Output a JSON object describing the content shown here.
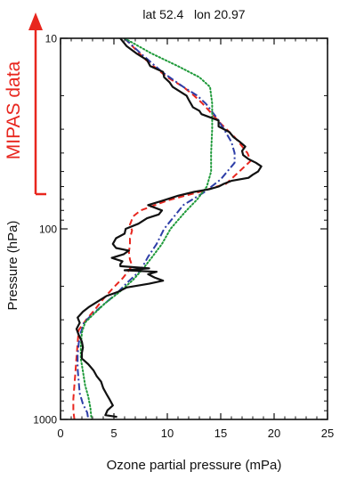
{
  "chart_data": {
    "type": "line",
    "title": "lat 52.4   lon 20.97",
    "xlabel": "Ozone partial pressure (mPa)",
    "ylabel": "Pressure (hPa)",
    "xlim": [
      0,
      25
    ],
    "ylim": [
      10,
      1000
    ],
    "y_scale": "log",
    "y_reversed": true,
    "x_ticks": [
      "0",
      "5",
      "10",
      "15",
      "20",
      "25"
    ],
    "y_tick_labels": [
      "10",
      "100",
      "1000"
    ],
    "annotation": {
      "text": "MIPAS data",
      "range_hpa": [
        10,
        60
      ],
      "color": "#e8261e"
    },
    "series": [
      {
        "color": "#111111",
        "dash": "solid",
        "points": [
          [
            5.6,
            10
          ],
          [
            6.2,
            11
          ],
          [
            7.1,
            12
          ],
          [
            8.1,
            13
          ],
          [
            8.4,
            14
          ],
          [
            9.6,
            15
          ],
          [
            9.7,
            16
          ],
          [
            10.2,
            17
          ],
          [
            10.5,
            18
          ],
          [
            11.8,
            20
          ],
          [
            12.0,
            21
          ],
          [
            12.4,
            23
          ],
          [
            13.0,
            24
          ],
          [
            13.2,
            25
          ],
          [
            14.8,
            27
          ],
          [
            14.8,
            29
          ],
          [
            15.8,
            31
          ],
          [
            16.2,
            33
          ],
          [
            16.8,
            35
          ],
          [
            17.3,
            37
          ],
          [
            17.0,
            39
          ],
          [
            17.1,
            41
          ],
          [
            17.6,
            43
          ],
          [
            18.3,
            45
          ],
          [
            18.8,
            47
          ],
          [
            18.5,
            50
          ],
          [
            18.0,
            52
          ],
          [
            17.6,
            54
          ],
          [
            16.0,
            56
          ],
          [
            15.3,
            58
          ],
          [
            14.8,
            60
          ],
          [
            13.9,
            62
          ],
          [
            12.5,
            64
          ],
          [
            11.0,
            67
          ],
          [
            9.6,
            71
          ],
          [
            8.2,
            75
          ],
          [
            9.5,
            80
          ],
          [
            9.2,
            84
          ],
          [
            8.1,
            88
          ],
          [
            7.3,
            94
          ],
          [
            6.1,
            100
          ],
          [
            6.0,
            106
          ],
          [
            5.2,
            112
          ],
          [
            4.9,
            120
          ],
          [
            5.2,
            126
          ],
          [
            6.4,
            130
          ],
          [
            5.9,
            136
          ],
          [
            4.8,
            142
          ],
          [
            5.8,
            148
          ],
          [
            5.6,
            153
          ],
          [
            5.6,
            157
          ],
          [
            8.3,
            161
          ],
          [
            6.0,
            165
          ],
          [
            9.0,
            168
          ],
          [
            8.2,
            173
          ],
          [
            8.8,
            180
          ],
          [
            9.6,
            187
          ],
          [
            8.3,
            194
          ],
          [
            6.2,
            203
          ],
          [
            5.4,
            214
          ],
          [
            4.3,
            225
          ],
          [
            3.5,
            240
          ],
          [
            2.7,
            256
          ],
          [
            2.1,
            272
          ],
          [
            1.6,
            292
          ],
          [
            1.8,
            311
          ],
          [
            1.5,
            335
          ],
          [
            1.7,
            360
          ],
          [
            2.0,
            391
          ],
          [
            2.1,
            419
          ],
          [
            2.0,
            447
          ],
          [
            2.0,
            479
          ],
          [
            2.6,
            513
          ],
          [
            3.1,
            554
          ],
          [
            3.4,
            594
          ],
          [
            3.8,
            634
          ],
          [
            4.0,
            685
          ],
          [
            4.3,
            735
          ],
          [
            4.6,
            786
          ],
          [
            4.9,
            845
          ],
          [
            4.4,
            895
          ],
          [
            4.2,
            950
          ],
          [
            5.3,
            970
          ]
        ]
      },
      {
        "color": "#e8261e",
        "dash": "dashed",
        "points": [
          [
            6.0,
            10
          ],
          [
            8.0,
            13
          ],
          [
            10.0,
            16
          ],
          [
            11.5,
            18
          ],
          [
            12.5,
            20
          ],
          [
            13.3,
            22
          ],
          [
            15.0,
            28
          ],
          [
            16.3,
            33
          ],
          [
            17.5,
            40
          ],
          [
            17.8,
            44
          ],
          [
            15.5,
            58
          ],
          [
            13.0,
            64
          ],
          [
            10.0,
            71
          ],
          [
            7.5,
            80
          ],
          [
            6.8,
            86
          ],
          [
            6.5,
            95
          ],
          [
            6.7,
            102
          ],
          [
            6.5,
            112
          ],
          [
            6.5,
            122
          ],
          [
            6.4,
            132
          ],
          [
            6.5,
            145
          ],
          [
            6.7,
            156
          ],
          [
            6.3,
            168
          ],
          [
            5.8,
            182
          ],
          [
            4.9,
            205
          ],
          [
            4.1,
            230
          ],
          [
            3.1,
            270
          ],
          [
            2.4,
            300
          ],
          [
            1.7,
            340
          ],
          [
            1.6,
            400
          ],
          [
            1.5,
            470
          ],
          [
            1.4,
            560
          ],
          [
            1.3,
            660
          ],
          [
            1.2,
            780
          ],
          [
            1.2,
            900
          ],
          [
            1.3,
            1000
          ]
        ]
      },
      {
        "color": "#2e3ea8",
        "dash": "dashdot",
        "points": [
          [
            6.0,
            10
          ],
          [
            7.5,
            12
          ],
          [
            9.5,
            15
          ],
          [
            11.5,
            18
          ],
          [
            12.8,
            20
          ],
          [
            13.6,
            22
          ],
          [
            14.6,
            26
          ],
          [
            15.3,
            30
          ],
          [
            16.0,
            35
          ],
          [
            16.3,
            40
          ],
          [
            16.3,
            45
          ],
          [
            15.0,
            55
          ],
          [
            13.5,
            64
          ],
          [
            11.5,
            75
          ],
          [
            10.5,
            88
          ],
          [
            9.7,
            100
          ],
          [
            9.0,
            120
          ],
          [
            8.2,
            140
          ],
          [
            7.5,
            165
          ],
          [
            6.3,
            190
          ],
          [
            5.2,
            220
          ],
          [
            4.0,
            250
          ],
          [
            3.0,
            280
          ],
          [
            2.2,
            310
          ],
          [
            1.9,
            350
          ],
          [
            1.7,
            400
          ],
          [
            1.6,
            460
          ],
          [
            1.6,
            540
          ],
          [
            1.7,
            630
          ],
          [
            1.8,
            730
          ],
          [
            2.1,
            830
          ],
          [
            2.5,
            920
          ],
          [
            2.6,
            1000
          ]
        ]
      },
      {
        "color": "#1f9a3a",
        "dash": "dotted",
        "points": [
          [
            6.0,
            10
          ],
          [
            8.5,
            12
          ],
          [
            11.0,
            14
          ],
          [
            13.0,
            16
          ],
          [
            14.0,
            18
          ],
          [
            14.2,
            22
          ],
          [
            14.2,
            30
          ],
          [
            14.1,
            40
          ],
          [
            14.1,
            50
          ],
          [
            13.7,
            60
          ],
          [
            12.8,
            70
          ],
          [
            11.8,
            80
          ],
          [
            11.0,
            90
          ],
          [
            10.3,
            100
          ],
          [
            9.5,
            120
          ],
          [
            8.6,
            140
          ],
          [
            7.8,
            160
          ],
          [
            6.8,
            185
          ],
          [
            5.5,
            215
          ],
          [
            4.2,
            245
          ],
          [
            3.1,
            280
          ],
          [
            2.3,
            310
          ],
          [
            2.0,
            350
          ],
          [
            1.9,
            410
          ],
          [
            1.9,
            480
          ],
          [
            2.1,
            560
          ],
          [
            2.3,
            660
          ],
          [
            2.6,
            760
          ],
          [
            2.8,
            870
          ],
          [
            2.9,
            1000
          ]
        ]
      }
    ]
  }
}
